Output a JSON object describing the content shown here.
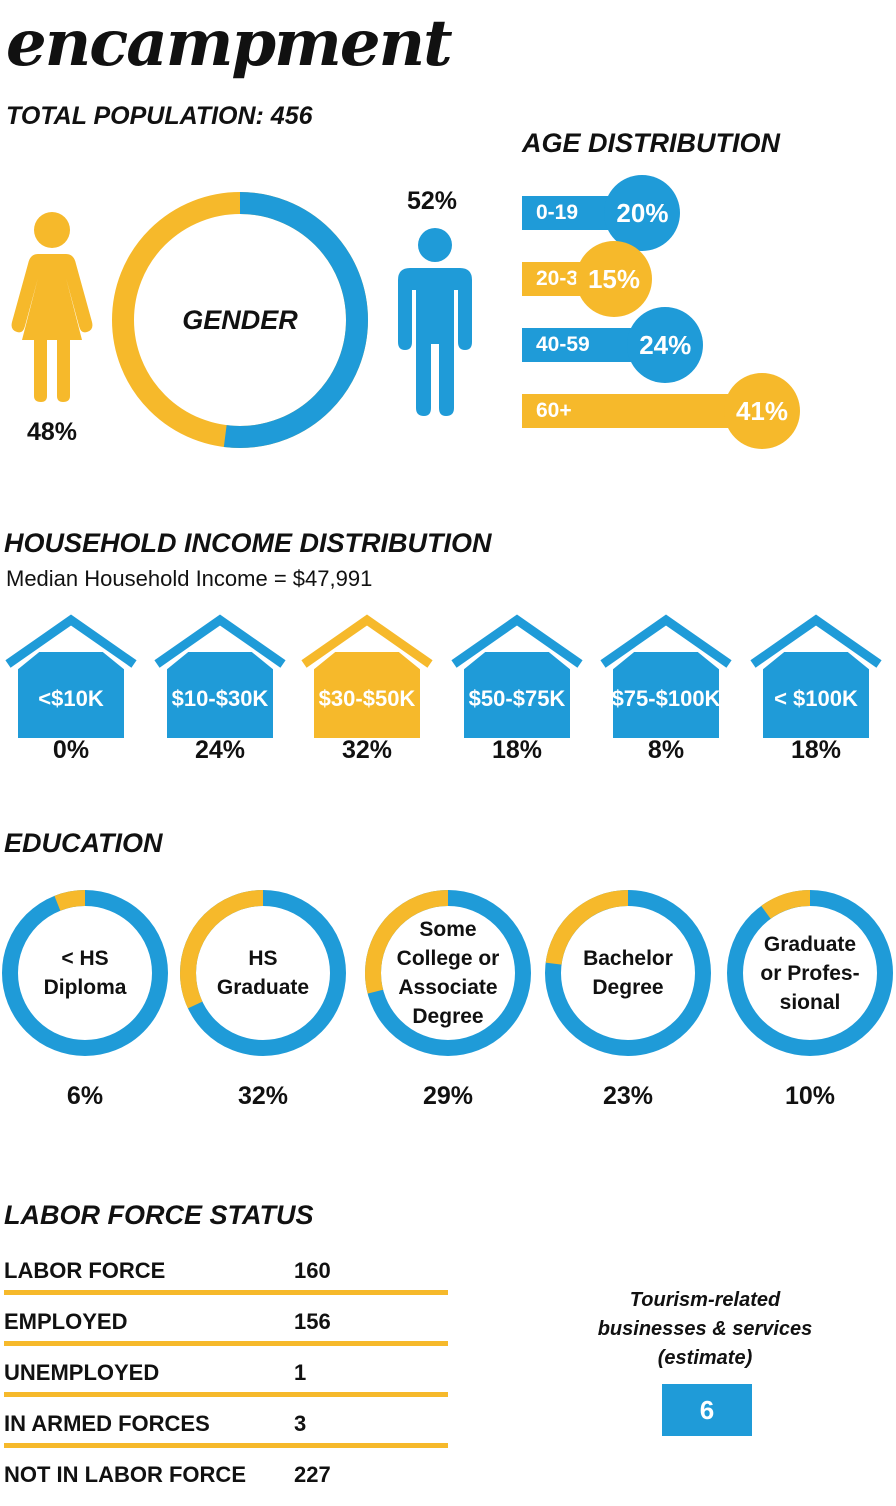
{
  "title": "encampment",
  "subtitle": "TOTAL POPULATION: 456",
  "colors": {
    "blue": "#1f9bd8",
    "yellow": "#f6b92b"
  },
  "gender": {
    "center_label": "GENDER",
    "female_pct": "48%",
    "male_pct": "52%"
  },
  "age": {
    "heading": "AGE DISTRIBUTION"
  },
  "income": {
    "heading": "HOUSEHOLD INCOME DISTRIBUTION",
    "median": "Median Household Income = $47,991"
  },
  "education": {
    "heading": "EDUCATION"
  },
  "labor": {
    "heading": "LABOR FORCE STATUS",
    "rows": [
      {
        "label": "LABOR FORCE",
        "value": "160"
      },
      {
        "label": "EMPLOYED",
        "value": "156"
      },
      {
        "label": "UNEMPLOYED",
        "value": "1"
      },
      {
        "label": "IN ARMED FORCES",
        "value": "3"
      },
      {
        "label": "NOT IN LABOR FORCE",
        "value": "227"
      }
    ]
  },
  "tourism": {
    "label_line1": "Tourism-related",
    "label_line2": "businesses & services",
    "label_line3": "(estimate)",
    "value": "6"
  },
  "chart_data": [
    {
      "type": "pie",
      "title": "GENDER",
      "categories": [
        "Female",
        "Male"
      ],
      "values": [
        48,
        52
      ],
      "colors": [
        "#f6b92b",
        "#1f9bd8"
      ]
    },
    {
      "type": "bar",
      "title": "AGE DISTRIBUTION",
      "categories": [
        "0-19",
        "20-39",
        "40-59",
        "60+"
      ],
      "values": [
        20,
        15,
        24,
        41
      ],
      "labels": [
        "20%",
        "15%",
        "24%",
        "41%"
      ],
      "colors": [
        "#1f9bd8",
        "#f6b92b",
        "#1f9bd8",
        "#f6b92b"
      ]
    },
    {
      "type": "bar",
      "title": "HOUSEHOLD INCOME DISTRIBUTION",
      "categories": [
        "<$10K",
        "$10- $30K",
        "$30- $50K",
        "$50- $75K",
        "$75- $100K",
        "< $100K"
      ],
      "values": [
        0,
        24,
        32,
        18,
        8,
        18
      ],
      "labels": [
        "0%",
        "24%",
        "32%",
        "18%",
        "8%",
        "18%"
      ],
      "colors": [
        "#1f9bd8",
        "#1f9bd8",
        "#f6b92b",
        "#1f9bd8",
        "#1f9bd8",
        "#1f9bd8"
      ]
    },
    {
      "type": "pie",
      "title": "EDUCATION",
      "categories": [
        "< HS Diploma",
        "HS Graduate",
        "Some College or Associate Degree",
        "Bachelor Degree",
        "Graduate or Profes-sional"
      ],
      "label_lines": [
        [
          "< HS",
          "Diploma"
        ],
        [
          "HS",
          "Graduate"
        ],
        [
          "Some",
          "College or",
          "Associate",
          "Degree"
        ],
        [
          "Bachelor",
          "Degree"
        ],
        [
          "Graduate",
          "or Profes-",
          "sional"
        ]
      ],
      "values": [
        6,
        32,
        29,
        23,
        10
      ],
      "labels": [
        "6%",
        "32%",
        "29%",
        "23%",
        "10%"
      ]
    }
  ]
}
